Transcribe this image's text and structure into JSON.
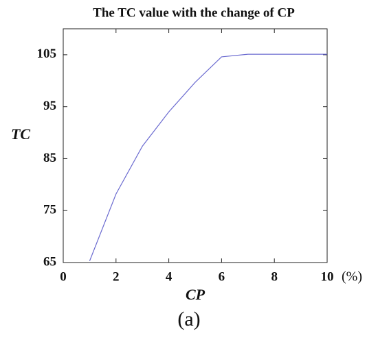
{
  "chart_data": {
    "type": "line",
    "title": "The TC value with the change of CP",
    "x_label": "CP",
    "y_label": "TC",
    "x_unit": "(%)",
    "panel_label": "(a)",
    "x": [
      1,
      2,
      3,
      4,
      5,
      6,
      7,
      8,
      9,
      10
    ],
    "series": [
      {
        "color": "#6b6bd0",
        "values": [
          65.3,
          78.2,
          87.4,
          94.0,
          99.7,
          104.6,
          105.1,
          105.1,
          105.1,
          105.1
        ]
      }
    ],
    "xlim": [
      0,
      10
    ],
    "ylim": [
      65,
      110
    ],
    "xticks": [
      0,
      2,
      4,
      6,
      8,
      10
    ],
    "yticks": [
      65,
      75,
      85,
      95,
      105
    ]
  }
}
